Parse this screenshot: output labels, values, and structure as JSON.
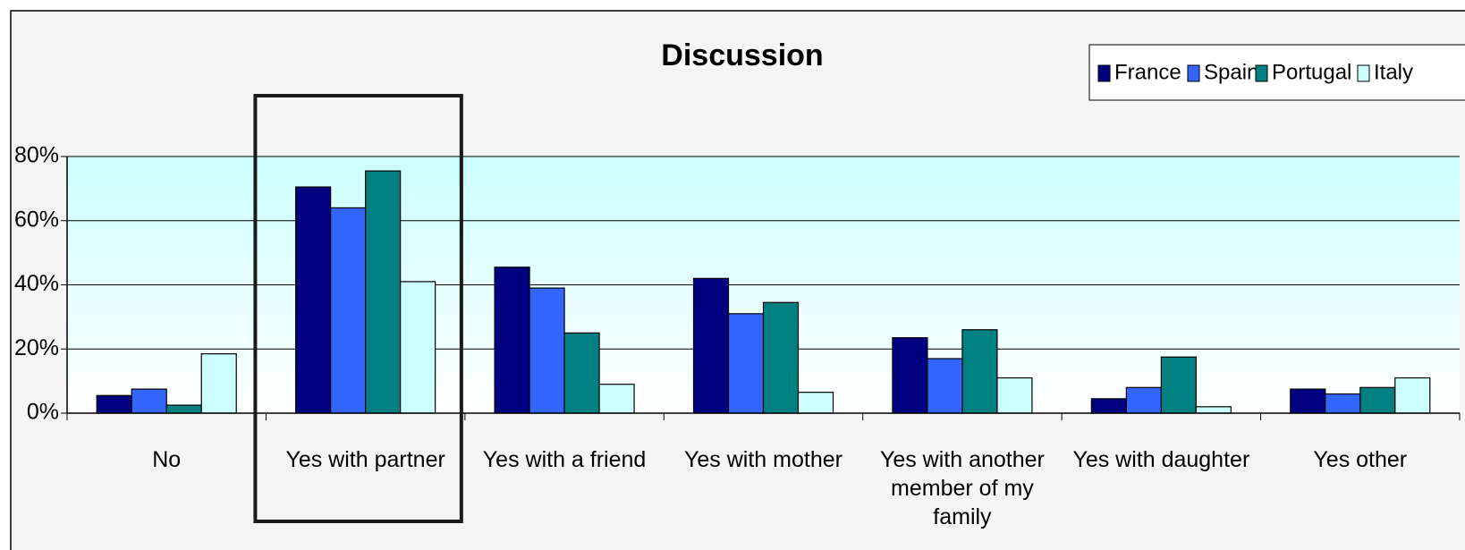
{
  "chart_data": {
    "type": "bar",
    "title": "Discussion",
    "categories": [
      "No",
      "Yes with partner",
      "Yes with a friend",
      "Yes with mother",
      "Yes with another member of my family",
      "Yes with daughter",
      "Yes other"
    ],
    "series": [
      {
        "name": "France",
        "color": "#000080",
        "values": [
          5.5,
          70.5,
          45.5,
          42,
          23.5,
          4.5,
          7.5
        ]
      },
      {
        "name": "Spain",
        "color": "#3366ff",
        "values": [
          7.5,
          64,
          39,
          31,
          17,
          8,
          6
        ]
      },
      {
        "name": "Portugal",
        "color": "#008080",
        "values": [
          2.5,
          75.5,
          25,
          34.5,
          26,
          17.5,
          8
        ]
      },
      {
        "name": "Italy",
        "color": "#ccffff",
        "values": [
          18.5,
          41,
          9,
          6.5,
          11,
          2,
          11
        ]
      }
    ],
    "ylim": [
      0,
      80
    ],
    "yticks": [
      {
        "value": 0,
        "label": "0%"
      },
      {
        "value": 20,
        "label": "20%"
      },
      {
        "value": 40,
        "label": "40%"
      },
      {
        "value": 60,
        "label": "60%"
      },
      {
        "value": 80,
        "label": "80%"
      }
    ],
    "grid": true,
    "legend": "top-right"
  }
}
